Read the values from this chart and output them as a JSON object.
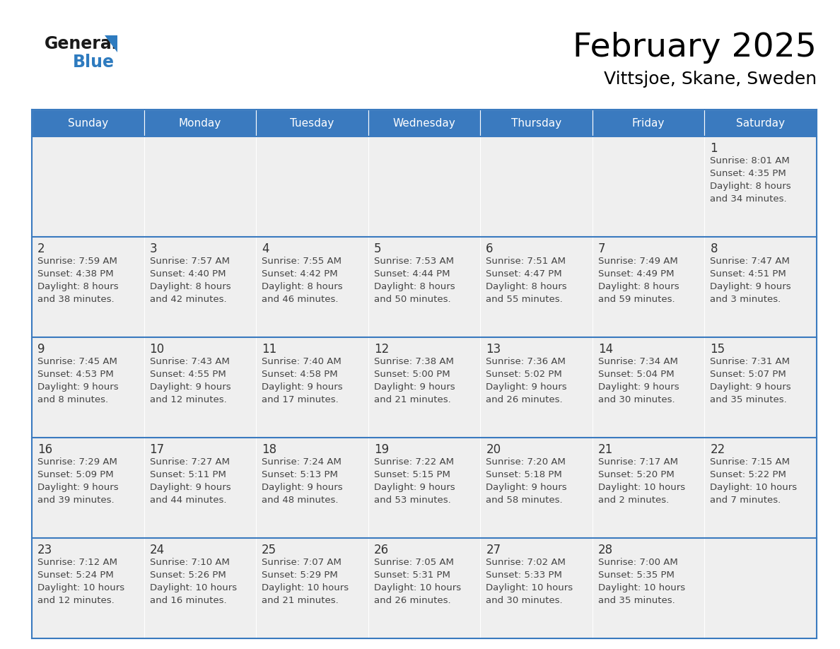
{
  "title": "February 2025",
  "subtitle": "Vittsjoe, Skane, Sweden",
  "header_color": "#3a7abf",
  "header_text_color": "#ffffff",
  "day_names": [
    "Sunday",
    "Monday",
    "Tuesday",
    "Wednesday",
    "Thursday",
    "Friday",
    "Saturday"
  ],
  "cell_bg_color": "#efefef",
  "divider_color": "#3a7abf",
  "day_number_color": "#333333",
  "text_color": "#444444",
  "days": [
    {
      "day": 1,
      "col": 6,
      "row": 0,
      "sunrise": "8:01 AM",
      "sunset": "4:35 PM",
      "daylight": "8 hours",
      "daylight2": "and 34 minutes."
    },
    {
      "day": 2,
      "col": 0,
      "row": 1,
      "sunrise": "7:59 AM",
      "sunset": "4:38 PM",
      "daylight": "8 hours",
      "daylight2": "and 38 minutes."
    },
    {
      "day": 3,
      "col": 1,
      "row": 1,
      "sunrise": "7:57 AM",
      "sunset": "4:40 PM",
      "daylight": "8 hours",
      "daylight2": "and 42 minutes."
    },
    {
      "day": 4,
      "col": 2,
      "row": 1,
      "sunrise": "7:55 AM",
      "sunset": "4:42 PM",
      "daylight": "8 hours",
      "daylight2": "and 46 minutes."
    },
    {
      "day": 5,
      "col": 3,
      "row": 1,
      "sunrise": "7:53 AM",
      "sunset": "4:44 PM",
      "daylight": "8 hours",
      "daylight2": "and 50 minutes."
    },
    {
      "day": 6,
      "col": 4,
      "row": 1,
      "sunrise": "7:51 AM",
      "sunset": "4:47 PM",
      "daylight": "8 hours",
      "daylight2": "and 55 minutes."
    },
    {
      "day": 7,
      "col": 5,
      "row": 1,
      "sunrise": "7:49 AM",
      "sunset": "4:49 PM",
      "daylight": "8 hours",
      "daylight2": "and 59 minutes."
    },
    {
      "day": 8,
      "col": 6,
      "row": 1,
      "sunrise": "7:47 AM",
      "sunset": "4:51 PM",
      "daylight": "9 hours",
      "daylight2": "and 3 minutes."
    },
    {
      "day": 9,
      "col": 0,
      "row": 2,
      "sunrise": "7:45 AM",
      "sunset": "4:53 PM",
      "daylight": "9 hours",
      "daylight2": "and 8 minutes."
    },
    {
      "day": 10,
      "col": 1,
      "row": 2,
      "sunrise": "7:43 AM",
      "sunset": "4:55 PM",
      "daylight": "9 hours",
      "daylight2": "and 12 minutes."
    },
    {
      "day": 11,
      "col": 2,
      "row": 2,
      "sunrise": "7:40 AM",
      "sunset": "4:58 PM",
      "daylight": "9 hours",
      "daylight2": "and 17 minutes."
    },
    {
      "day": 12,
      "col": 3,
      "row": 2,
      "sunrise": "7:38 AM",
      "sunset": "5:00 PM",
      "daylight": "9 hours",
      "daylight2": "and 21 minutes."
    },
    {
      "day": 13,
      "col": 4,
      "row": 2,
      "sunrise": "7:36 AM",
      "sunset": "5:02 PM",
      "daylight": "9 hours",
      "daylight2": "and 26 minutes."
    },
    {
      "day": 14,
      "col": 5,
      "row": 2,
      "sunrise": "7:34 AM",
      "sunset": "5:04 PM",
      "daylight": "9 hours",
      "daylight2": "and 30 minutes."
    },
    {
      "day": 15,
      "col": 6,
      "row": 2,
      "sunrise": "7:31 AM",
      "sunset": "5:07 PM",
      "daylight": "9 hours",
      "daylight2": "and 35 minutes."
    },
    {
      "day": 16,
      "col": 0,
      "row": 3,
      "sunrise": "7:29 AM",
      "sunset": "5:09 PM",
      "daylight": "9 hours",
      "daylight2": "and 39 minutes."
    },
    {
      "day": 17,
      "col": 1,
      "row": 3,
      "sunrise": "7:27 AM",
      "sunset": "5:11 PM",
      "daylight": "9 hours",
      "daylight2": "and 44 minutes."
    },
    {
      "day": 18,
      "col": 2,
      "row": 3,
      "sunrise": "7:24 AM",
      "sunset": "5:13 PM",
      "daylight": "9 hours",
      "daylight2": "and 48 minutes."
    },
    {
      "day": 19,
      "col": 3,
      "row": 3,
      "sunrise": "7:22 AM",
      "sunset": "5:15 PM",
      "daylight": "9 hours",
      "daylight2": "and 53 minutes."
    },
    {
      "day": 20,
      "col": 4,
      "row": 3,
      "sunrise": "7:20 AM",
      "sunset": "5:18 PM",
      "daylight": "9 hours",
      "daylight2": "and 58 minutes."
    },
    {
      "day": 21,
      "col": 5,
      "row": 3,
      "sunrise": "7:17 AM",
      "sunset": "5:20 PM",
      "daylight": "10 hours",
      "daylight2": "and 2 minutes."
    },
    {
      "day": 22,
      "col": 6,
      "row": 3,
      "sunrise": "7:15 AM",
      "sunset": "5:22 PM",
      "daylight": "10 hours",
      "daylight2": "and 7 minutes."
    },
    {
      "day": 23,
      "col": 0,
      "row": 4,
      "sunrise": "7:12 AM",
      "sunset": "5:24 PM",
      "daylight": "10 hours",
      "daylight2": "and 12 minutes."
    },
    {
      "day": 24,
      "col": 1,
      "row": 4,
      "sunrise": "7:10 AM",
      "sunset": "5:26 PM",
      "daylight": "10 hours",
      "daylight2": "and 16 minutes."
    },
    {
      "day": 25,
      "col": 2,
      "row": 4,
      "sunrise": "7:07 AM",
      "sunset": "5:29 PM",
      "daylight": "10 hours",
      "daylight2": "and 21 minutes."
    },
    {
      "day": 26,
      "col": 3,
      "row": 4,
      "sunrise": "7:05 AM",
      "sunset": "5:31 PM",
      "daylight": "10 hours",
      "daylight2": "and 26 minutes."
    },
    {
      "day": 27,
      "col": 4,
      "row": 4,
      "sunrise": "7:02 AM",
      "sunset": "5:33 PM",
      "daylight": "10 hours",
      "daylight2": "and 30 minutes."
    },
    {
      "day": 28,
      "col": 5,
      "row": 4,
      "sunrise": "7:00 AM",
      "sunset": "5:35 PM",
      "daylight": "10 hours",
      "daylight2": "and 35 minutes."
    }
  ]
}
